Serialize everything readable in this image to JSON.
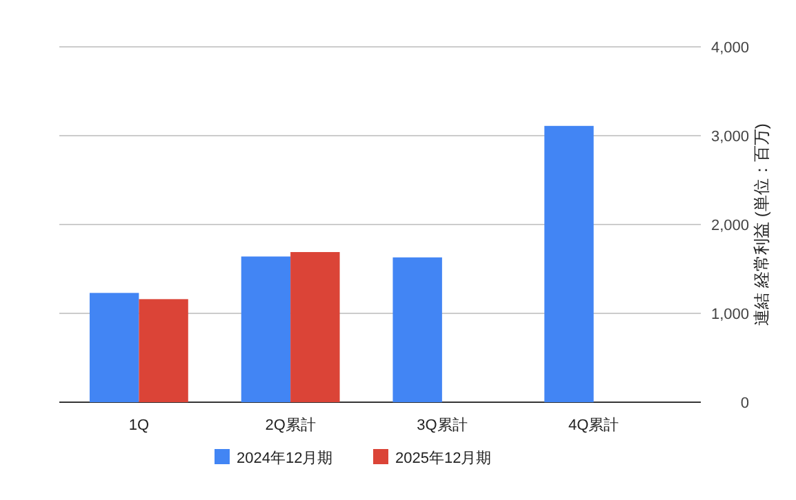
{
  "chart_data": {
    "type": "bar",
    "ylabel": "連結 経常利益 (単位：百万)",
    "categories": [
      "1Q",
      "2Q累計",
      "3Q累計",
      "4Q累計"
    ],
    "series": [
      {
        "name": "2024年12月期",
        "color": "#4285f4",
        "values": [
          1230,
          1640,
          1630,
          3110
        ]
      },
      {
        "name": "2025年12月期",
        "color": "#db4437",
        "values": [
          1160,
          1690,
          null,
          null
        ]
      }
    ],
    "ylim": [
      0,
      4000
    ],
    "yticks": [
      {
        "value": 0,
        "label": "0"
      },
      {
        "value": 1000,
        "label": "1,000"
      },
      {
        "value": 2000,
        "label": "2,000"
      },
      {
        "value": 3000,
        "label": "3,000"
      },
      {
        "value": 4000,
        "label": "4,000"
      }
    ],
    "grid": true,
    "legend": "bottom"
  }
}
